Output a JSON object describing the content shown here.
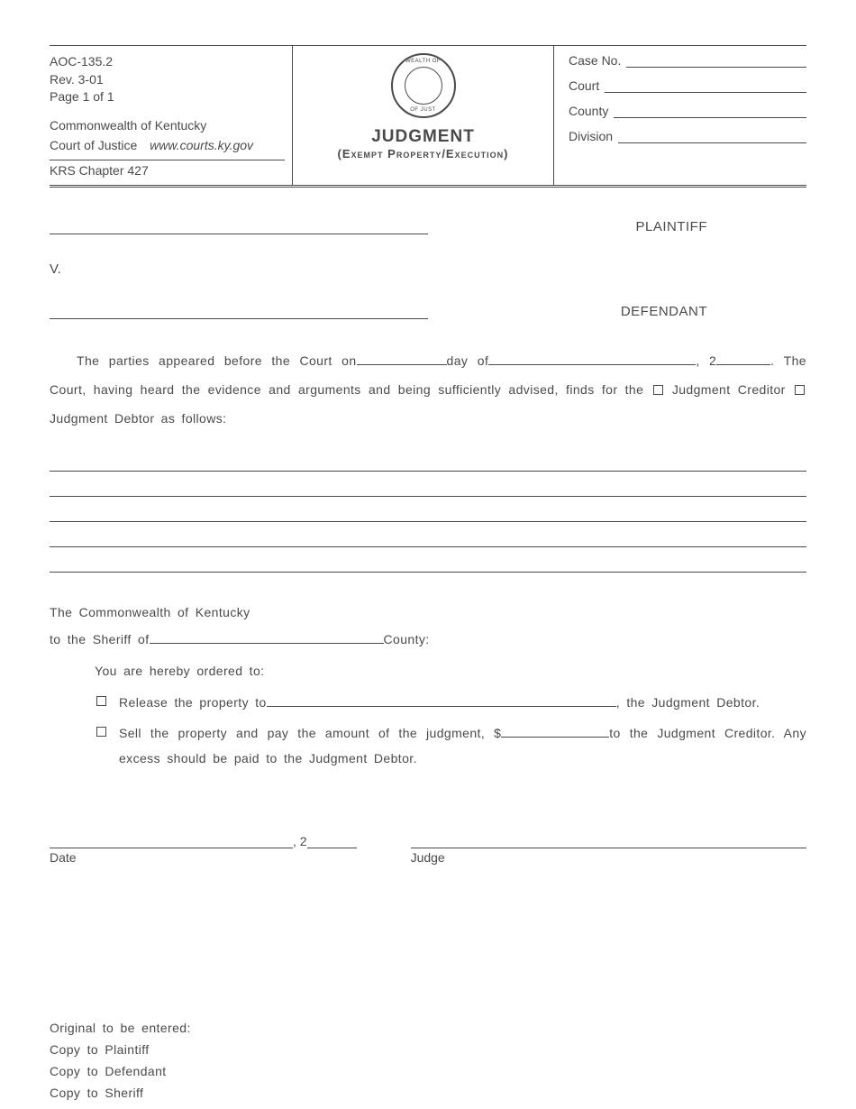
{
  "header": {
    "form_id": "AOC-135.2",
    "revision": "Rev. 3-01",
    "page": "Page 1 of 1",
    "state": "Commonwealth of Kentucky",
    "court": "Court of Justice",
    "url": "www.courts.ky.gov",
    "statute": "KRS Chapter 427",
    "title": "JUDGMENT",
    "subtitle": "(Exempt  Property/Execution)",
    "case_no_label": "Case  No.",
    "court_label": "Court",
    "county_label": "County",
    "division_label": "Division"
  },
  "parties": {
    "plaintiff_label": "PLAINTIFF",
    "vs": "V.",
    "defendant_label": "DEFENDANT"
  },
  "body": {
    "p1_a": "The  parties  appeared  before  the  Court  on",
    "p1_b": "day  of",
    "p1_c": ",  2",
    "p1_d": ".",
    "p2_a": "The  Court,  having  heard  the  evidence  and  arguments  and  being  sufficiently  advised,  finds  for  the ",
    "p2_b": " Judgment Creditor ",
    "p2_c": " Judgment  Debtor  as  follows:"
  },
  "section2": {
    "line1": "The  Commonwealth  of  Kentucky",
    "line2_a": "to  the  Sheriff  of",
    "line2_b": "County:",
    "ordered": "You  are  hereby  ordered  to:",
    "opt1_a": "Release  the  property  to",
    "opt1_b": ",  the  Judgment  Debtor.",
    "opt2_a": "Sell  the  property  and  pay  the  amount  of  the  judgment,  $",
    "opt2_b": "to  the  Judgment  Creditor. Any  excess  should  be  paid  to  the  Judgment  Debtor."
  },
  "sig": {
    "prefix": ",  2",
    "date_label": "Date",
    "judge_label": "Judge"
  },
  "footer": {
    "l1": "Original  to  be  entered:",
    "l2": "Copy  to  Plaintiff",
    "l3": "Copy  to  Defendant",
    "l4": "Copy  to  Sheriff"
  },
  "colors": {
    "text": "#4a4a4a",
    "background": "#ffffff"
  }
}
